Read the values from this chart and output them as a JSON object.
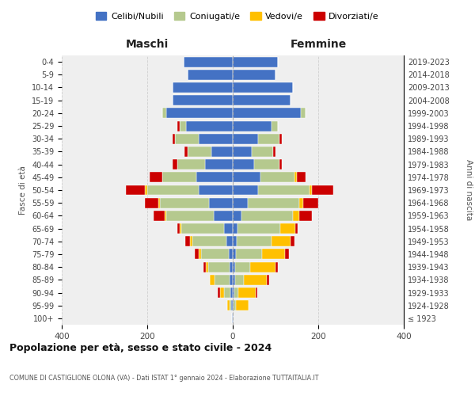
{
  "age_groups": [
    "100+",
    "95-99",
    "90-94",
    "85-89",
    "80-84",
    "75-79",
    "70-74",
    "65-69",
    "60-64",
    "55-59",
    "50-54",
    "45-49",
    "40-44",
    "35-39",
    "30-34",
    "25-29",
    "20-24",
    "15-19",
    "10-14",
    "5-9",
    "0-4"
  ],
  "birth_years": [
    "≤ 1923",
    "1924-1928",
    "1929-1933",
    "1934-1938",
    "1939-1943",
    "1944-1948",
    "1949-1953",
    "1954-1958",
    "1959-1963",
    "1964-1968",
    "1969-1973",
    "1974-1978",
    "1979-1983",
    "1984-1988",
    "1989-1993",
    "1994-1998",
    "1999-2003",
    "2004-2008",
    "2009-2013",
    "2014-2018",
    "2019-2023"
  ],
  "colors": {
    "celibi": "#4472c4",
    "coniugati": "#b5c98e",
    "vedovi": "#ffc000",
    "divorziati": "#cc0000"
  },
  "maschi": {
    "celibi": [
      2,
      3,
      5,
      8,
      8,
      10,
      15,
      20,
      45,
      55,
      80,
      85,
      65,
      50,
      80,
      110,
      155,
      140,
      140,
      105,
      115
    ],
    "coniugati": [
      0,
      5,
      15,
      35,
      50,
      65,
      80,
      100,
      110,
      115,
      120,
      80,
      65,
      55,
      55,
      15,
      10,
      0,
      0,
      0,
      0
    ],
    "vedovi": [
      0,
      5,
      10,
      10,
      5,
      5,
      5,
      5,
      5,
      5,
      5,
      0,
      0,
      0,
      0,
      0,
      0,
      0,
      0,
      0,
      0
    ],
    "divorziati": [
      0,
      0,
      5,
      0,
      5,
      8,
      12,
      5,
      25,
      30,
      45,
      30,
      10,
      8,
      5,
      5,
      0,
      0,
      0,
      0,
      0
    ]
  },
  "femmine": {
    "nubili": [
      2,
      2,
      3,
      5,
      5,
      8,
      10,
      12,
      20,
      35,
      60,
      65,
      50,
      45,
      60,
      90,
      160,
      135,
      140,
      100,
      105
    ],
    "coniugate": [
      0,
      5,
      10,
      20,
      35,
      60,
      80,
      100,
      120,
      120,
      120,
      80,
      60,
      50,
      50,
      15,
      10,
      0,
      0,
      0,
      0
    ],
    "vedove": [
      0,
      30,
      40,
      55,
      60,
      55,
      45,
      35,
      15,
      10,
      5,
      5,
      0,
      0,
      0,
      0,
      0,
      0,
      0,
      0,
      0
    ],
    "divorziate": [
      0,
      0,
      5,
      5,
      5,
      8,
      10,
      5,
      30,
      35,
      50,
      20,
      5,
      5,
      5,
      0,
      0,
      0,
      0,
      0,
      0
    ]
  },
  "title": "Popolazione per età, sesso e stato civile - 2024",
  "subtitle": "COMUNE DI CASTIGLIONE OLONA (VA) - Dati ISTAT 1° gennaio 2024 - Elaborazione TUTTAITALIA.IT",
  "xlabel_maschi": "Maschi",
  "xlabel_femmine": "Femmine",
  "ylabel": "Fasce di età",
  "ylabel_right": "Anni di nascita",
  "xlim": 400,
  "legend_labels": [
    "Celibi/Nubili",
    "Coniugati/e",
    "Vedovi/e",
    "Divorziati/e"
  ],
  "bg_color": "#ffffff",
  "grid_color": "#cccccc"
}
